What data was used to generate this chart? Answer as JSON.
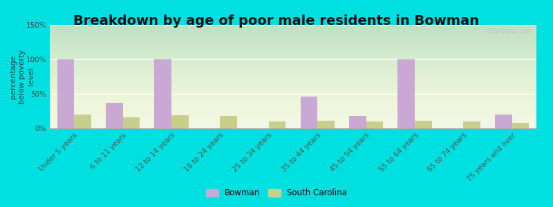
{
  "title": "Breakdown by age of poor male residents in Bowman",
  "ylabel": "percentage\nbelow poverty\nlevel",
  "categories": [
    "Under 5 years",
    "6 to 11 years",
    "12 to 14 years",
    "18 to 24 years",
    "25 to 34 years",
    "35 to 44 years",
    "45 to 54 years",
    "55 to 64 years",
    "65 to 74 years",
    "75 years and over"
  ],
  "bowman_values": [
    100,
    37,
    100,
    0,
    0,
    46,
    18,
    100,
    0,
    20
  ],
  "sc_values": [
    20,
    16,
    19,
    18,
    10,
    11,
    10,
    11,
    10,
    8
  ],
  "bowman_color": "#c9a8d4",
  "sc_color": "#c8cf8a",
  "background_color": "#00e0e0",
  "plot_bg_color": "#eef5e8",
  "ylim": [
    0,
    150
  ],
  "yticks": [
    0,
    50,
    100,
    150
  ],
  "ytick_labels": [
    "0%",
    "50%",
    "100%",
    "150%"
  ],
  "bar_width": 0.35,
  "title_fontsize": 14,
  "axis_label_fontsize": 8,
  "tick_fontsize": 7.5,
  "legend_labels": [
    "Bowman",
    "South Carolina"
  ]
}
